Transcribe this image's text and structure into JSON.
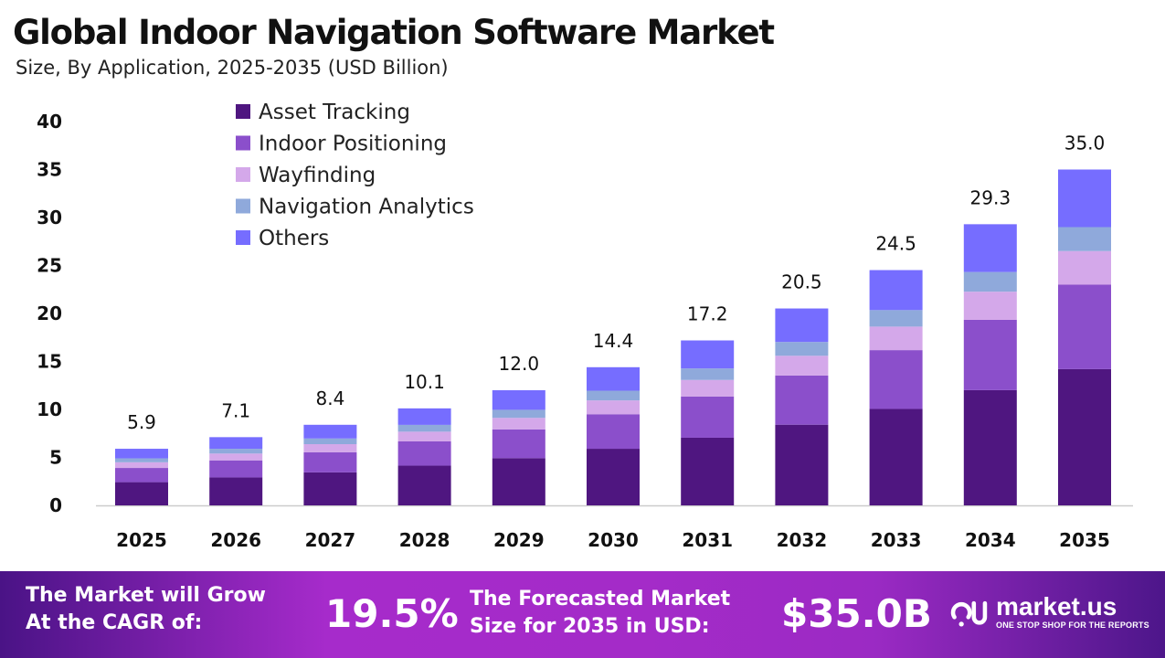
{
  "title": "Global Indoor Navigation Software Market",
  "subtitle": "Size, By Application, 2025-2035 (USD Billion)",
  "chart_data": {
    "type": "stacked-bar",
    "categories": [
      "2025",
      "2026",
      "2027",
      "2028",
      "2029",
      "2030",
      "2031",
      "2032",
      "2033",
      "2034",
      "2035"
    ],
    "series": [
      {
        "name": "Asset Tracking",
        "color": "#4f1680",
        "values": [
          2.42,
          2.91,
          3.44,
          4.14,
          4.92,
          5.9,
          7.05,
          8.41,
          10.05,
          12.01,
          14.2
        ]
      },
      {
        "name": "Indoor Positioning",
        "color": "#8b4fcb",
        "values": [
          1.48,
          1.78,
          2.1,
          2.53,
          3.0,
          3.6,
          4.3,
          5.13,
          6.13,
          7.33,
          8.8
        ]
      },
      {
        "name": "Wayfinding",
        "color": "#d4a8ea",
        "values": [
          0.59,
          0.71,
          0.84,
          1.01,
          1.2,
          1.44,
          1.72,
          2.05,
          2.45,
          2.93,
          3.5
        ]
      },
      {
        "name": "Navigation Analytics",
        "color": "#8fa9db",
        "values": [
          0.41,
          0.5,
          0.59,
          0.71,
          0.84,
          1.01,
          1.2,
          1.44,
          1.72,
          2.05,
          2.5
        ]
      },
      {
        "name": "Others",
        "color": "#766dff",
        "values": [
          1.0,
          1.21,
          1.43,
          1.72,
          2.04,
          2.45,
          2.92,
          3.49,
          4.17,
          4.98,
          6.0
        ]
      }
    ],
    "totals": [
      "5.9",
      "7.1",
      "8.4",
      "10.1",
      "12.0",
      "14.4",
      "17.2",
      "20.5",
      "24.5",
      "29.3",
      "35.0"
    ],
    "ylim": [
      0,
      40
    ],
    "yticks": [
      "0",
      "5",
      "10",
      "15",
      "20",
      "25",
      "30",
      "35",
      "40"
    ],
    "grid": false,
    "legend_position": "top-left"
  },
  "footer": {
    "cagr_label_line1": "The Market will Grow",
    "cagr_label_line2": "At the CAGR of:",
    "cagr_value": "19.5%",
    "forecast_label_line1": "The Forecasted Market",
    "forecast_label_line2": "Size for 2035 in USD:",
    "forecast_value": "$35.0B",
    "logo_name": "market.us",
    "logo_tagline": "ONE STOP SHOP FOR THE REPORTS"
  }
}
